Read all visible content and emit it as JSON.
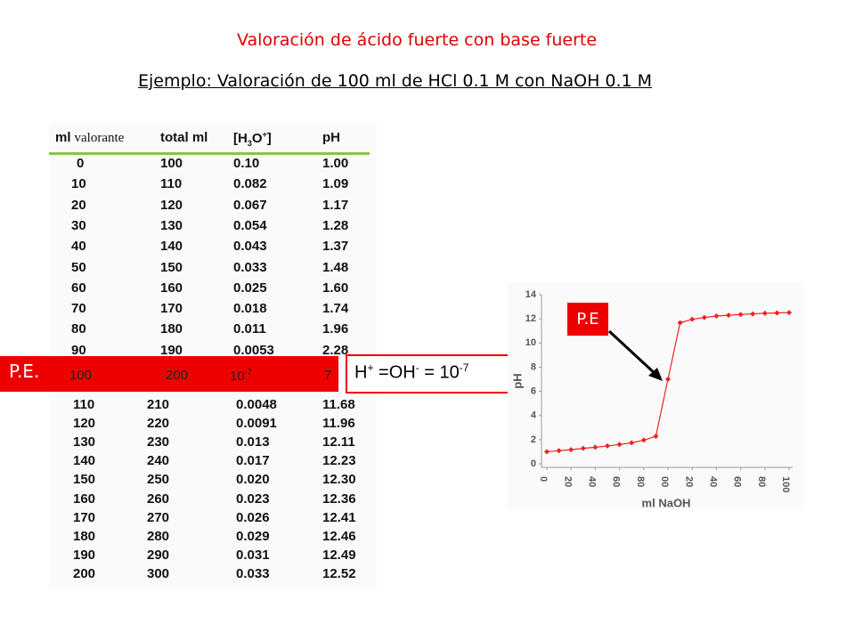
{
  "title": "Valoración de ácido fuerte con base fuerte",
  "subtitle": "Ejemplo: Valoración de 100 ml de HCl 0.1 M con NaOH 0.1 M",
  "table": {
    "header": [
      [
        "ml",
        "valorante"
      ],
      [
        "total ml"
      ],
      [
        "[H",
        "3",
        "O",
        "+",
        "]"
      ],
      [
        "pH"
      ]
    ],
    "rows": [
      [
        "0",
        "100",
        "0.10",
        "1.00"
      ],
      [
        "10",
        "110",
        "0.082",
        "1.09"
      ],
      [
        "20",
        "120",
        "0.067",
        "1.17"
      ],
      [
        "30",
        "130",
        "0.054",
        "1.28"
      ],
      [
        "40",
        "140",
        "0.043",
        "1.37"
      ],
      [
        "50",
        "150",
        "0.033",
        "1.48"
      ],
      [
        "60",
        "160",
        "0.025",
        "1.60"
      ],
      [
        "70",
        "170",
        "0.018",
        "1.74"
      ],
      [
        "80",
        "180",
        "0.011",
        "1.96"
      ],
      [
        "90",
        "190",
        "0.0053",
        "2.28"
      ]
    ],
    "equivalence_row": {
      "label": "P.E.",
      "cells": [
        "100",
        "200",
        [
          "10",
          "-7"
        ],
        "7"
      ]
    },
    "rows_after": [
      [
        "110",
        "210",
        "0.0048",
        "11.68"
      ],
      [
        "120",
        "220",
        "0.0091",
        "11.96"
      ],
      [
        "130",
        "230",
        "0.013",
        "12.11"
      ],
      [
        "140",
        "240",
        "0.017",
        "12.23"
      ],
      [
        "150",
        "250",
        "0.020",
        "12.30"
      ],
      [
        "160",
        "260",
        "0.023",
        "12.36"
      ],
      [
        "170",
        "270",
        "0.026",
        "12.41"
      ],
      [
        "180",
        "280",
        "0.029",
        "12.46"
      ],
      [
        "190",
        "290",
        "0.031",
        "12.49"
      ],
      [
        "200",
        "300",
        "0.033",
        "12.52"
      ]
    ]
  },
  "annotation": [
    "H",
    "+",
    " =OH",
    "-",
    " = 10",
    "-7"
  ],
  "chart_data": {
    "type": "line",
    "xlabel": "ml NaOH",
    "ylabel": "pH",
    "annotation": "P.E",
    "x": [
      0,
      10,
      20,
      30,
      40,
      50,
      60,
      70,
      80,
      90,
      100,
      110,
      120,
      130,
      140,
      150,
      160,
      170,
      180,
      190,
      200
    ],
    "series": [
      {
        "name": null,
        "color": "#ee2222",
        "values": [
          1.0,
          1.09,
          1.17,
          1.28,
          1.37,
          1.48,
          1.6,
          1.74,
          1.96,
          2.28,
          7,
          11.68,
          11.96,
          12.11,
          12.23,
          12.3,
          12.36,
          12.41,
          12.46,
          12.49,
          12.52
        ]
      }
    ],
    "xlim": [
      0,
      200
    ],
    "ylim": [
      0,
      14
    ],
    "xticks": [
      0,
      20,
      40,
      60,
      80,
      {
        "value": 100,
        "label": "00"
      },
      {
        "value": 120,
        "label": "20"
      },
      {
        "value": 140,
        "label": "40"
      },
      {
        "value": 160,
        "label": "60"
      },
      {
        "value": 180,
        "label": "80"
      },
      {
        "value": 200,
        "label": "100"
      }
    ],
    "yticks": [
      0,
      2,
      4,
      6,
      8,
      10,
      12,
      14
    ]
  }
}
